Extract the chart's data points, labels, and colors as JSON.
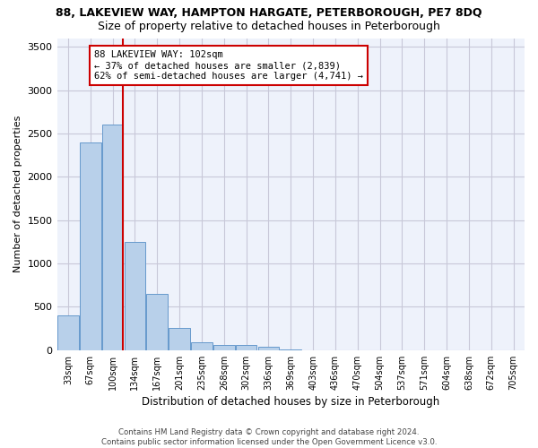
{
  "title": "88, LAKEVIEW WAY, HAMPTON HARGATE, PETERBOROUGH, PE7 8DQ",
  "subtitle": "Size of property relative to detached houses in Peterborough",
  "xlabel": "Distribution of detached houses by size in Peterborough",
  "ylabel": "Number of detached properties",
  "categories": [
    "33sqm",
    "67sqm",
    "100sqm",
    "134sqm",
    "167sqm",
    "201sqm",
    "235sqm",
    "268sqm",
    "302sqm",
    "336sqm",
    "369sqm",
    "403sqm",
    "436sqm",
    "470sqm",
    "504sqm",
    "537sqm",
    "571sqm",
    "604sqm",
    "638sqm",
    "672sqm",
    "705sqm"
  ],
  "bar_heights": [
    400,
    2400,
    2600,
    1250,
    650,
    260,
    90,
    60,
    60,
    40,
    5,
    0,
    0,
    0,
    0,
    0,
    0,
    0,
    0,
    0,
    0
  ],
  "bar_color": "#b8d0ea",
  "bar_edge_color": "#6699cc",
  "vline_position": 2,
  "vline_color": "#cc0000",
  "annotation_line1": "88 LAKEVIEW WAY: 102sqm",
  "annotation_line2": "← 37% of detached houses are smaller (2,839)",
  "annotation_line3": "62% of semi-detached houses are larger (4,741) →",
  "annotation_box_color": "#ffffff",
  "annotation_box_edge_color": "#cc0000",
  "ylim": [
    0,
    3600
  ],
  "yticks": [
    0,
    500,
    1000,
    1500,
    2000,
    2500,
    3000,
    3500
  ],
  "footer_line1": "Contains HM Land Registry data © Crown copyright and database right 2024.",
  "footer_line2": "Contains public sector information licensed under the Open Government Licence v3.0.",
  "bg_color": "#ffffff",
  "plot_bg_color": "#eef2fb",
  "grid_color": "#c8c8d8",
  "title_fontsize": 9,
  "subtitle_fontsize": 9,
  "ylabel_fontsize": 8,
  "xlabel_fontsize": 8.5
}
